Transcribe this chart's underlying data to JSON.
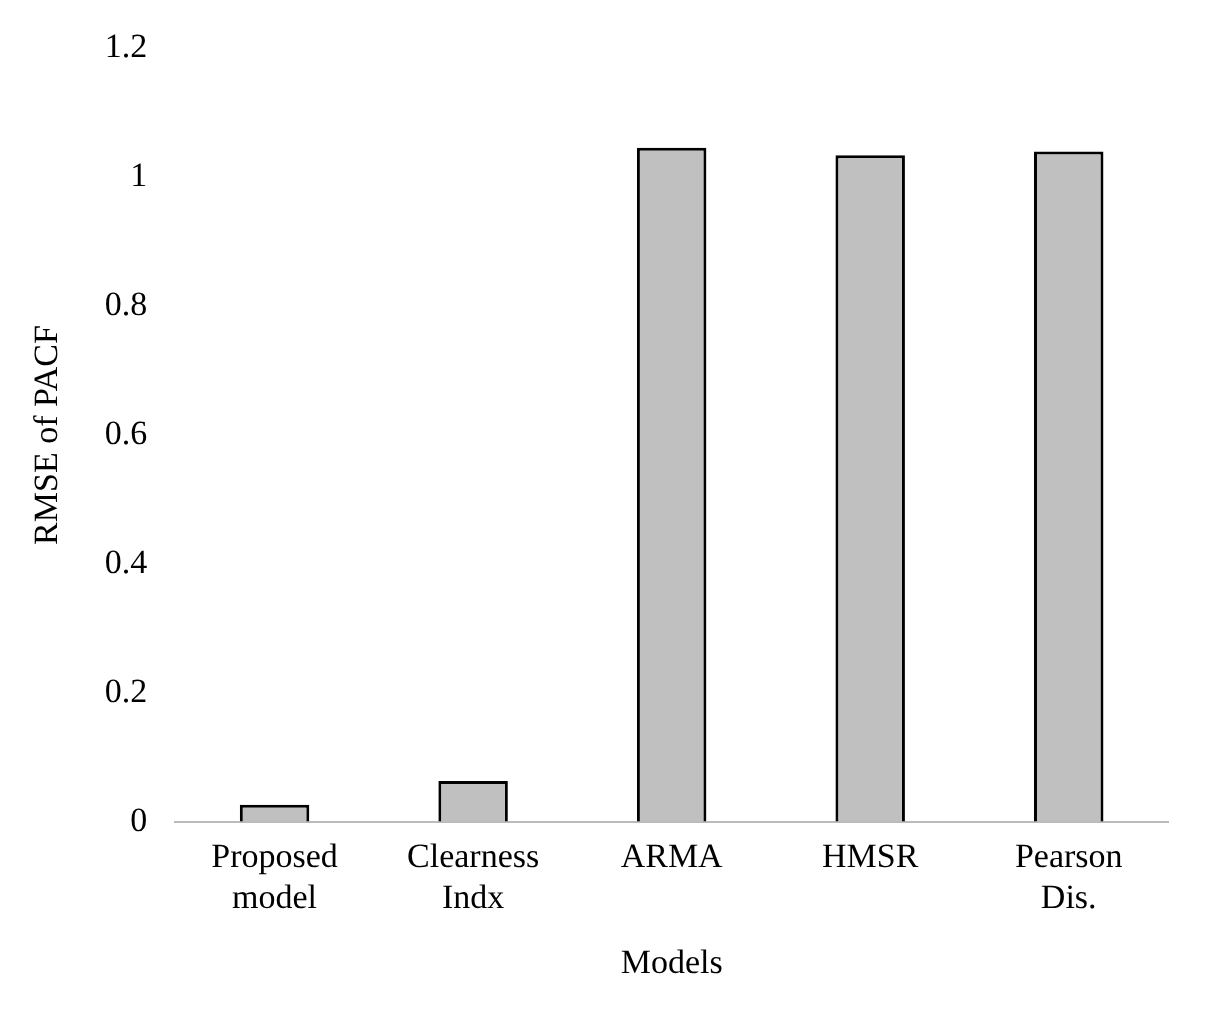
{
  "chart_data": {
    "type": "bar",
    "xlabel": "Models",
    "ylabel": "RMSE of PACF",
    "categories": [
      "Proposed\nmodel",
      "Clearness\nIndx",
      "ARMA",
      "HMSR",
      "Pearson\nDis."
    ],
    "values": [
      0.026,
      0.063,
      1.046,
      1.034,
      1.04
    ],
    "color": "#c0c0c0",
    "ylim": [
      0,
      1.2
    ],
    "yticks": [
      0,
      0.2,
      0.4,
      0.6,
      0.8,
      1,
      1.2
    ],
    "grid": false,
    "legend": false
  }
}
